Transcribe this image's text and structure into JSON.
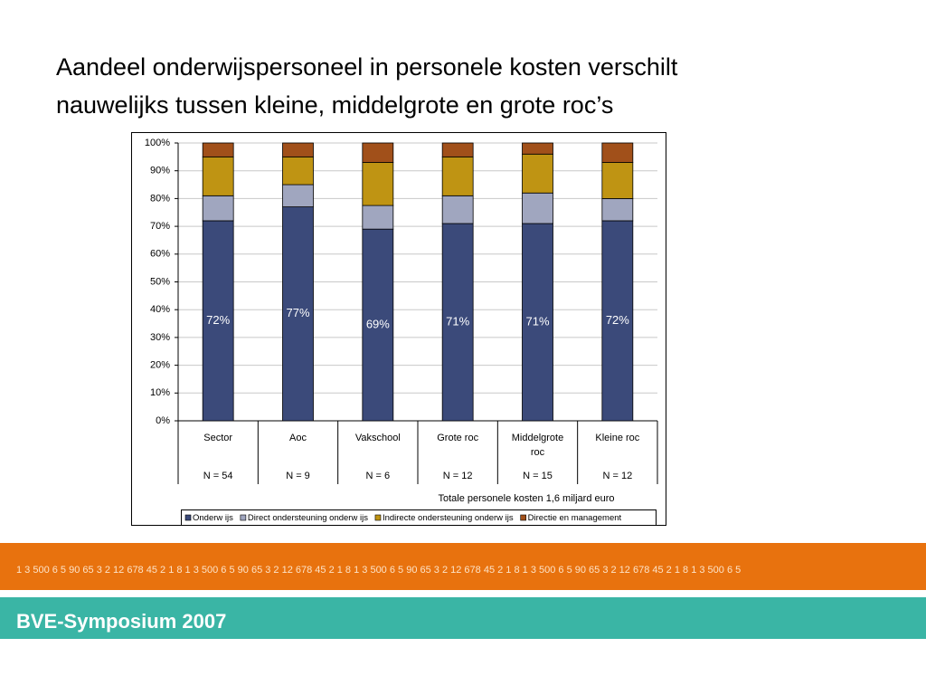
{
  "chart_data": {
    "type": "stacked_bar",
    "title": "Aandeel onderwijspersoneel in personele kosten verschilt nauwelijks tussen kleine, middelgrote en grote roc’s",
    "categories": [
      "Sector",
      "Aoc",
      "Vakschool",
      "Grote roc",
      "Middelgrote roc",
      "Kleine roc"
    ],
    "n_labels": [
      "N = 54",
      "N = 9",
      "N = 6",
      "N = 12",
      "N = 15",
      "N = 12"
    ],
    "note": "Totale personele kosten 1,6 miljard euro",
    "series": [
      {
        "name": "Onderw ijs",
        "color": "#3b4a7a",
        "values": [
          72,
          77,
          69,
          71,
          71,
          72
        ],
        "value_labels": [
          "72%",
          "77%",
          "69%",
          "71%",
          "71%",
          "72%"
        ]
      },
      {
        "name": "Direct ondersteuning onderw ijs",
        "color": "#a0a6bf",
        "values": [
          9,
          8,
          8.5,
          10,
          11,
          8
        ]
      },
      {
        "name": "Indirecte ondersteuning onderw ijs",
        "color": "#bf9413",
        "values": [
          14,
          10,
          15.5,
          14,
          14,
          13
        ]
      },
      {
        "name": "Directie en management",
        "color": "#a1501a",
        "values": [
          5,
          5,
          7,
          5,
          4,
          7
        ]
      }
    ],
    "ylim": [
      0,
      100
    ],
    "yticks": [
      {
        "value": 0,
        "label": "0%"
      },
      {
        "value": 10,
        "label": "10%"
      },
      {
        "value": 20,
        "label": "20%"
      },
      {
        "value": 30,
        "label": "30%"
      },
      {
        "value": 40,
        "label": "40%"
      },
      {
        "value": 50,
        "label": "50%"
      },
      {
        "value": 60,
        "label": "60%"
      },
      {
        "value": 70,
        "label": "70%"
      },
      {
        "value": 80,
        "label": "80%"
      },
      {
        "value": 90,
        "label": "90%"
      },
      {
        "value": 100,
        "label": "100%"
      }
    ],
    "grid": true
  },
  "footer": {
    "numbers": "1 3 500 6 5 90 65 3 2 12 678 45 2 1 8 1 3 500 6 5 90 65 3 2 12 678 45 2 1 8 1 3 500 6 5 90 65 3 2 12 678 45 2 1 8 1 3 500 6 5 90 65 3 2 12 678 45 2 1 8 1 3 500 6 5",
    "event": "BVE-Symposium 2007"
  }
}
